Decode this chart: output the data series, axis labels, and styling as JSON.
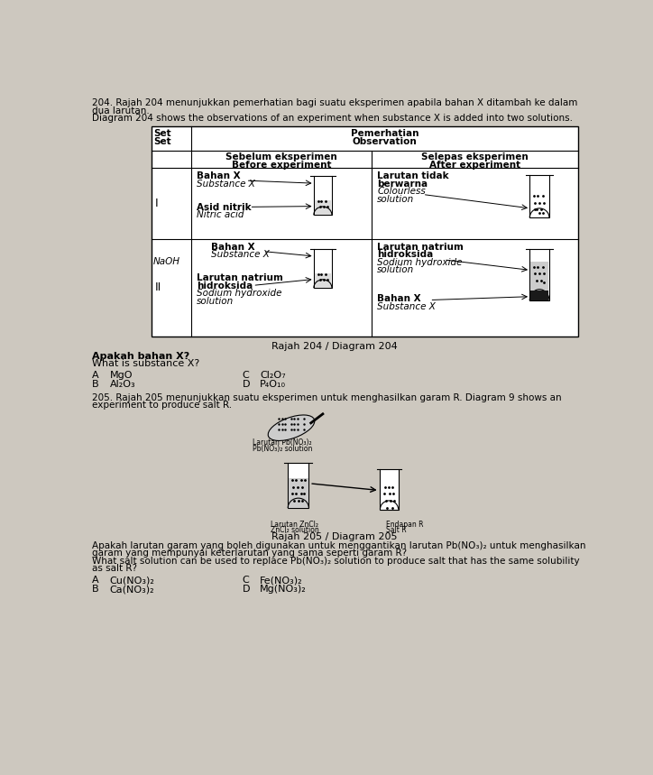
{
  "bg_color": "#cdc8bf",
  "question_204_header_1": "204. Rajah 204 menunjukkan pemerhatian bagi suatu eksperimen apabila bahan X ditambah ke dalam",
  "question_204_header_2": "dua larutan.",
  "question_204_header_3": "Diagram 204 shows the observations of an experiment when substance X is added into two solutions.",
  "table_set_1": "Set",
  "table_set_2": "Set",
  "table_obs_1": "Pemerhatian",
  "table_obs_2": "Observation",
  "table_before_1": "Sebelum eksperimen",
  "table_before_2": "Before experiment",
  "table_after_1": "Selepas eksperimen",
  "table_after_2": "After experiment",
  "row1_label": "I",
  "row1_bahan": "Bahan X",
  "row1_substance": "Substance X",
  "row1_asid": "Asid nitrik",
  "row1_nitric": "Nitric acid",
  "row1_after_1": "Larutan tidak",
  "row1_after_2": "berwarna",
  "row1_after_3": "Colourless",
  "row1_after_4": "solution",
  "row2_label": "II",
  "row2_bahan": "Bahan X",
  "row2_substance": "Substance X",
  "row2_naoh": "NaOH",
  "row2_larutan": "Larutan natrium",
  "row2_hidro": "hidroksida",
  "row2_sodium": "Sodium hydroxide",
  "row2_sol": "solution",
  "row2_after_1": "Larutan natrium",
  "row2_after_2": "hidroksida",
  "row2_after_3": "Sodium hydroxide",
  "row2_after_4": "solution",
  "row2_after_5": "Bahan X",
  "row2_after_6": "Substance X",
  "caption204": "Rajah 204 / Diagram 204",
  "q204_1": "Apakah bahan X?",
  "q204_2": "What is substance X?",
  "q204_A_label": "A",
  "q204_A_val": "MgO",
  "q204_C_label": "C",
  "q204_C_val": "Cl₂O₇",
  "q204_B_label": "B",
  "q204_B_val": "Al₂O₃",
  "q204_D_label": "D",
  "q204_D_val": "P₄O₁₀",
  "q205_hdr_1": "205. Rajah 205 menunjukkan suatu eksperimen untuk menghasilkan garam R. Diagram 9 shows an",
  "q205_hdr_2": "experiment to produce salt R.",
  "caption205": "Rajah 205 / Diagram 205",
  "q205_m_1": "Apakah larutan garam yang boleh digunakan untuk menggantikan larutan Pb(NO₃)₂ untuk menghasilkan",
  "q205_m_2": "garam yang mempunyai keterlarutan yang sama seperti garam R?",
  "q205_e_1": "What salt solution can be used to replace Pb(NO₃)₂ solution to produce salt that has the same solubility",
  "q205_e_2": "as salt R?",
  "q205_A_label": "A",
  "q205_A_val": "Cu(NO₃)₂",
  "q205_C_label": "C",
  "q205_C_val": "Fe(NO₃)₂",
  "q205_B_label": "B",
  "q205_B_val": "Ca(NO₃)₂",
  "q205_D_label": "D",
  "q205_D_val": "Mg(NO₃)₂",
  "diag205_pb_label_1": "Larutan Pb(NO₃)₂",
  "diag205_pb_label_2": "Pb(NO₃)₂ solution",
  "diag205_znl_label_1": "Larutan ZnCl₂",
  "diag205_znl_label_2": "ZnCl₂ solution",
  "diag205_end_label_1": "Endapan R",
  "diag205_end_label_2": "Salt R"
}
